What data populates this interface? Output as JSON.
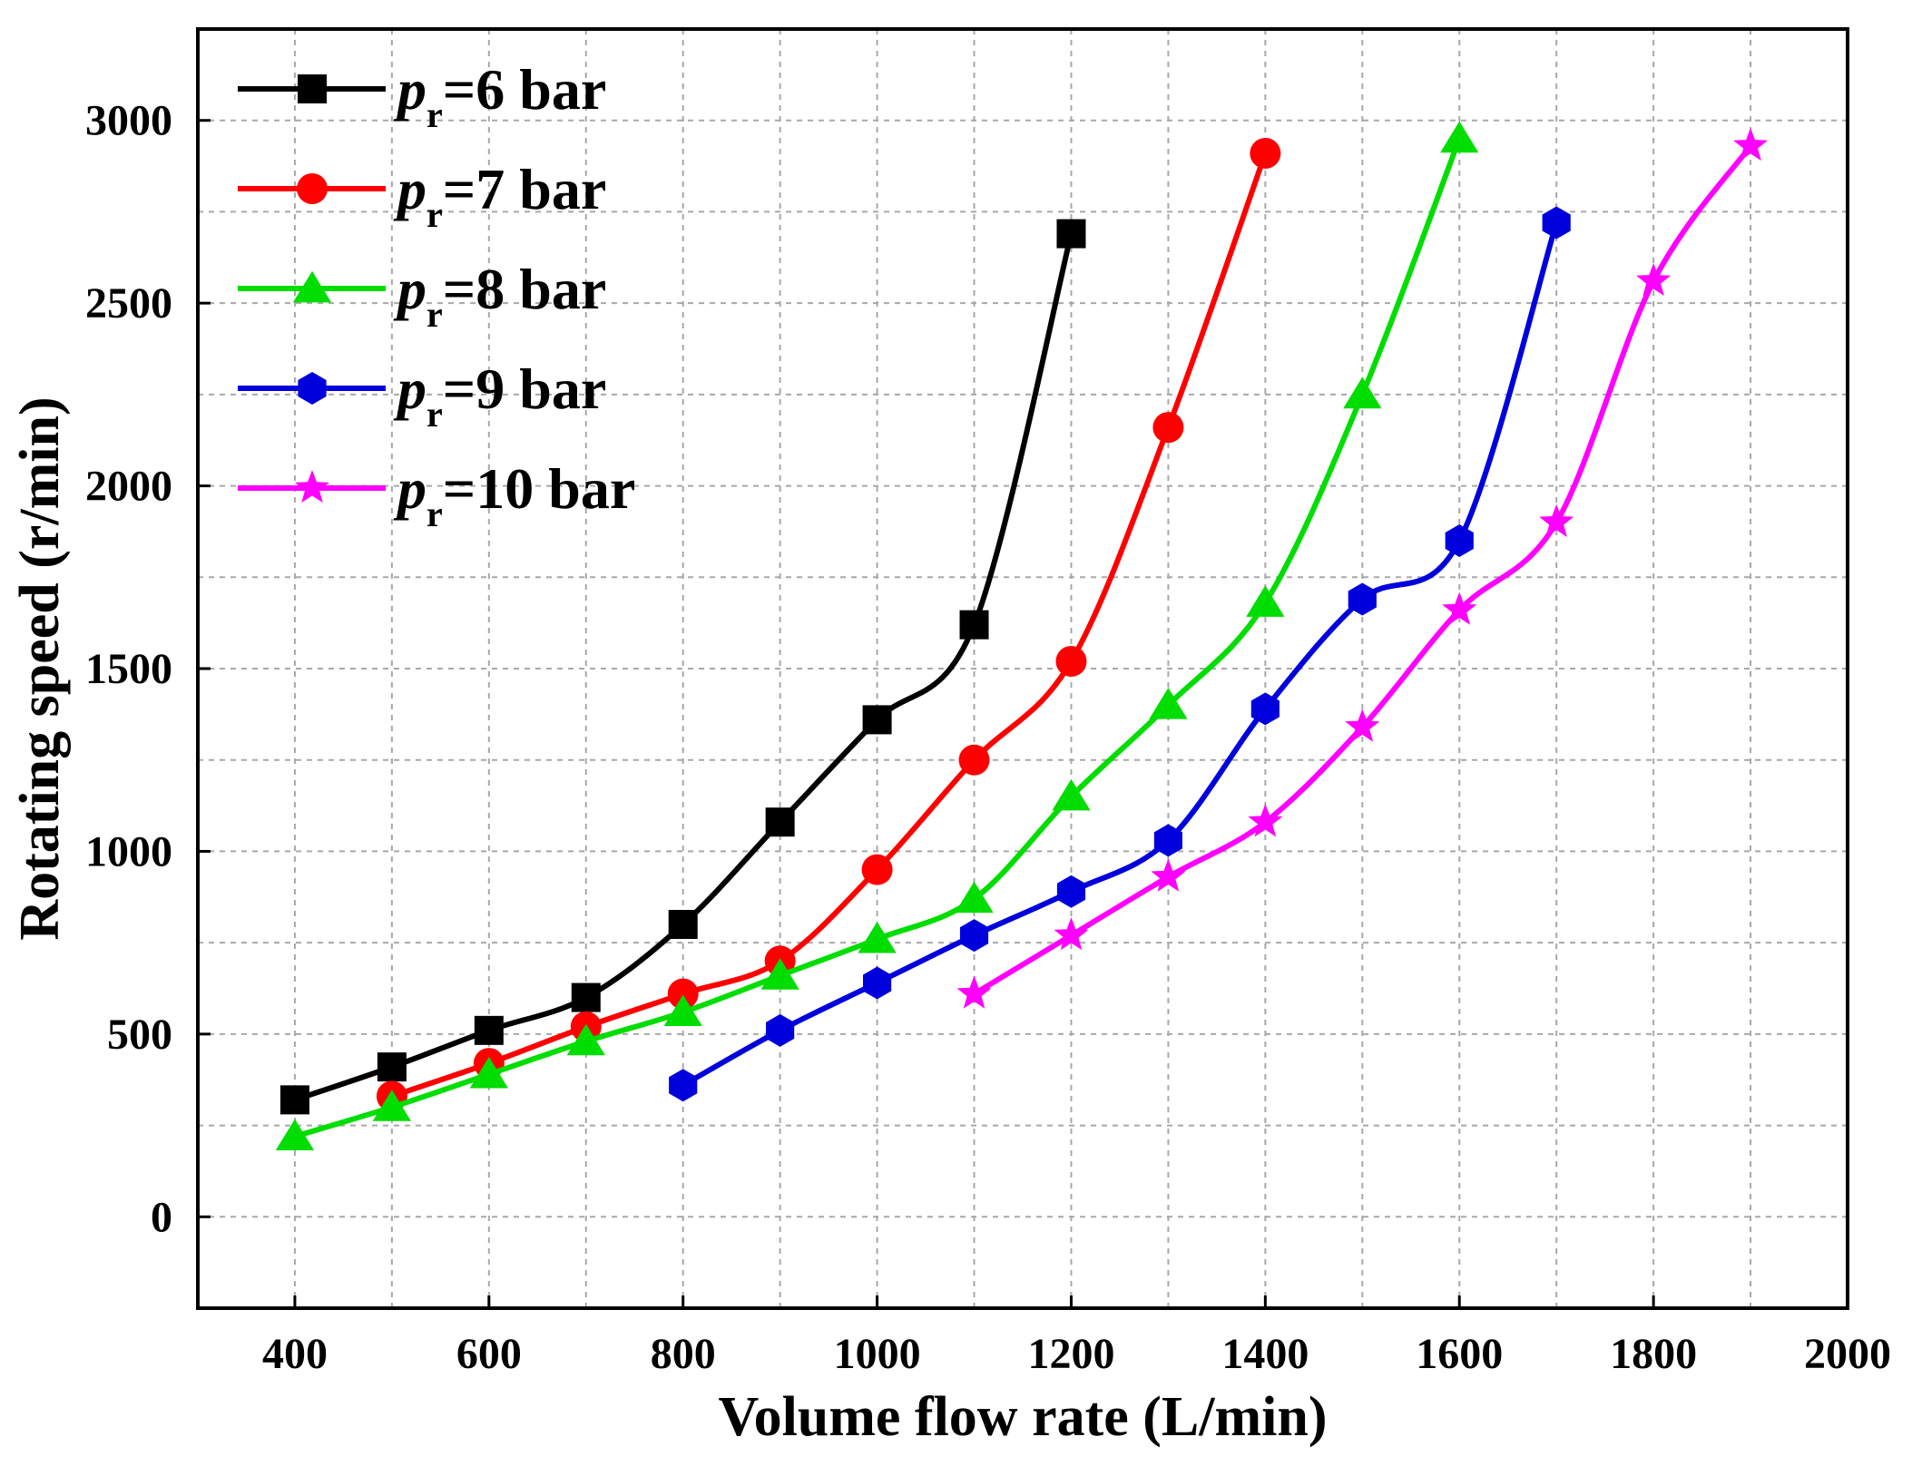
{
  "chart_data": {
    "type": "line",
    "title": "",
    "xlabel": "Volume flow rate (L/min)",
    "ylabel": "Rotating speed (r/min)",
    "xlim": [
      300,
      2000
    ],
    "ylim": [
      -250,
      3250
    ],
    "xticks": [
      400,
      600,
      800,
      1000,
      1200,
      1400,
      1600,
      1800,
      2000
    ],
    "yticks": [
      0,
      500,
      1000,
      1500,
      2000,
      2500,
      3000
    ],
    "grid": true,
    "legend_position": "top-left",
    "series": [
      {
        "name": "pr=6 bar",
        "label_symbol": "p",
        "label_subscript": "r",
        "label_rest": "=6 bar",
        "color": "#000000",
        "marker": "square",
        "x": [
          400,
          500,
          600,
          700,
          800,
          900,
          1000,
          1100,
          1200
        ],
        "y": [
          320,
          410,
          510,
          600,
          800,
          1080,
          1360,
          1620,
          2690
        ]
      },
      {
        "name": "pr=7 bar",
        "label_symbol": "p",
        "label_subscript": "r",
        "label_rest": "=7 bar",
        "color": "#ff0000",
        "marker": "circle",
        "x": [
          500,
          600,
          700,
          800,
          900,
          1000,
          1100,
          1200,
          1300,
          1400
        ],
        "y": [
          330,
          420,
          520,
          610,
          700,
          950,
          1250,
          1520,
          2160,
          2910
        ]
      },
      {
        "name": "pr=8 bar",
        "label_symbol": "p",
        "label_subscript": "r",
        "label_rest": "=8 bar",
        "color": "#00dd00",
        "marker": "triangle",
        "x": [
          400,
          500,
          600,
          700,
          800,
          900,
          1000,
          1100,
          1200,
          1300,
          1400,
          1500,
          1600
        ],
        "y": [
          220,
          300,
          390,
          480,
          560,
          660,
          760,
          870,
          1150,
          1400,
          1680,
          2250,
          2950
        ]
      },
      {
        "name": "pr=9 bar",
        "label_symbol": "p",
        "label_subscript": "r",
        "label_rest": "=9 bar",
        "color": "#0000dd",
        "marker": "hexagon",
        "x": [
          800,
          900,
          1000,
          1100,
          1200,
          1300,
          1400,
          1500,
          1600,
          1700
        ],
        "y": [
          360,
          510,
          640,
          770,
          890,
          1030,
          1390,
          1690,
          1850,
          2720
        ]
      },
      {
        "name": "pr=10 bar",
        "label_symbol": "p",
        "label_subscript": "r",
        "label_rest": "=10 bar",
        "color": "#ff00ff",
        "marker": "star",
        "x": [
          1100,
          1200,
          1300,
          1400,
          1500,
          1600,
          1700,
          1800,
          1900
        ],
        "y": [
          610,
          770,
          930,
          1080,
          1340,
          1660,
          1900,
          2560,
          2930
        ]
      }
    ]
  }
}
